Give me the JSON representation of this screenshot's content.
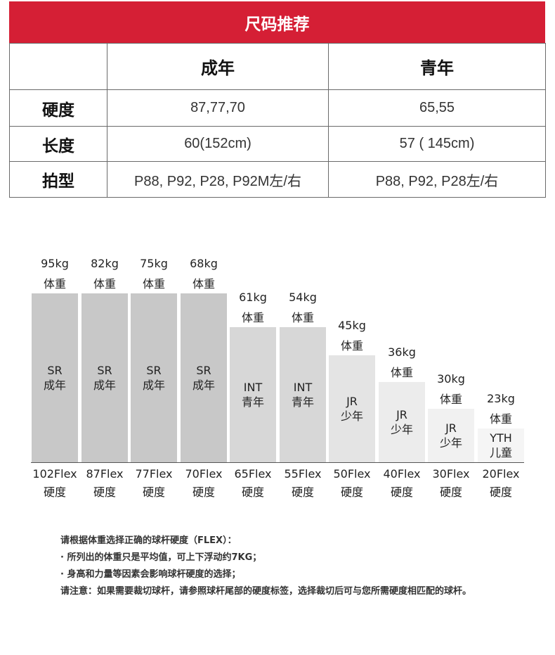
{
  "title": "尺码推荐",
  "table": {
    "columns": [
      "",
      "成年",
      "青年"
    ],
    "rows": [
      {
        "label": "硬度",
        "adult": "87,77,70",
        "youth": "65,55"
      },
      {
        "label": "长度",
        "adult": "60(152cm)",
        "youth": "57 ( 145cm)"
      },
      {
        "label": "拍型",
        "adult": "P88, P92, P28, P92M左/右",
        "youth": "P88, P92, P28左/右"
      }
    ]
  },
  "chart_data": {
    "type": "bar",
    "weight_label": "体重",
    "flex_label": "硬度",
    "categories": [
      "102Flex",
      "87Flex",
      "77Flex",
      "70Flex",
      "65Flex",
      "55Flex",
      "50Flex",
      "40Flex",
      "30Flex",
      "20Flex"
    ],
    "weights": [
      "95kg",
      "82kg",
      "75kg",
      "68kg",
      "61kg",
      "54kg",
      "45kg",
      "36kg",
      "30kg",
      "23kg"
    ],
    "values": [
      95,
      95,
      95,
      95,
      76,
      76,
      60,
      45,
      30,
      19
    ],
    "level_1": [
      "SR",
      "SR",
      "SR",
      "SR",
      "INT",
      "INT",
      "JR",
      "JR",
      "JR",
      "YTH"
    ],
    "level_2": [
      "成年",
      "成年",
      "成年",
      "成年",
      "青年",
      "青年",
      "少年",
      "少年",
      "少年",
      "儿童"
    ],
    "colors": [
      "#c8c8c8",
      "#c8c8c8",
      "#c8c8c8",
      "#c8c8c8",
      "#d7d7d7",
      "#d7d7d7",
      "#e4e4e4",
      "#ececec",
      "#f1f1f1",
      "#f5f5f5"
    ]
  },
  "notes": [
    "请根据体重选择正确的球杆硬度（FLEX）：",
    "· 所列出的体重只是平均值，可上下浮动约7KG；",
    "· 身高和力量等因素会影响球杆硬度的选择；",
    "请注意：如果需要裁切球杆，请参照球杆尾部的硬度标签，选择裁切后可与您所需硬度相匹配的球杆。"
  ]
}
